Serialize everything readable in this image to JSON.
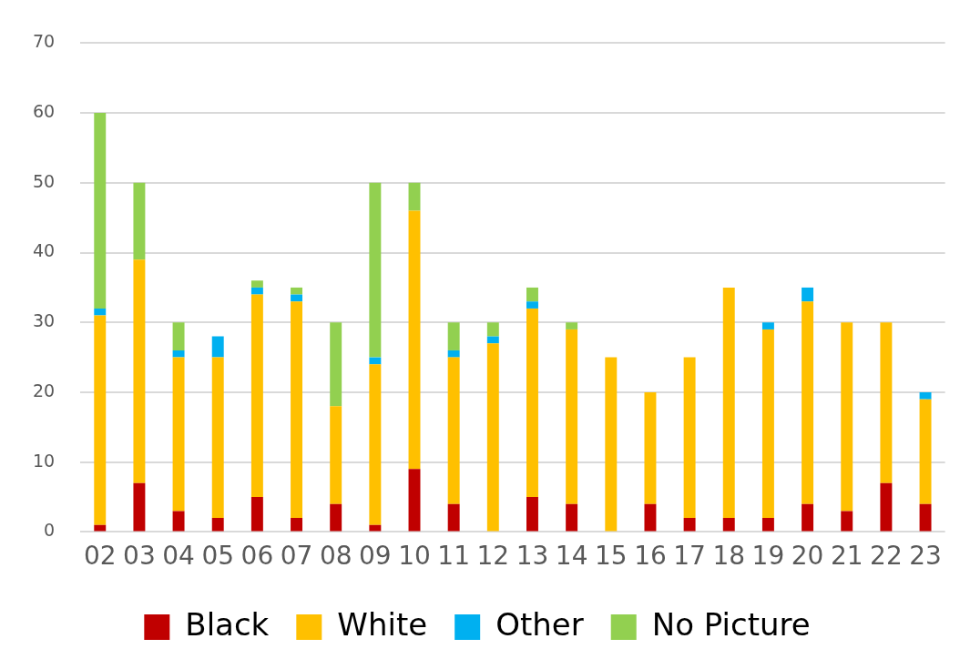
{
  "chart_data": {
    "type": "bar",
    "stacked": true,
    "categories": [
      "02",
      "03",
      "04",
      "05",
      "06",
      "07",
      "08",
      "09",
      "10",
      "11",
      "12",
      "13",
      "14",
      "15",
      "16",
      "17",
      "18",
      "19",
      "20",
      "21",
      "22",
      "23"
    ],
    "series": [
      {
        "name": "Black",
        "color": "#c00000",
        "values": [
          1,
          7,
          3,
          2,
          5,
          2,
          4,
          1,
          9,
          4,
          0,
          5,
          4,
          0,
          4,
          2,
          2,
          2,
          4,
          3,
          7,
          4
        ]
      },
      {
        "name": "White",
        "color": "#ffc000",
        "values": [
          30,
          32,
          22,
          23,
          29,
          31,
          14,
          23,
          37,
          21,
          27,
          27,
          25,
          25,
          16,
          23,
          33,
          27,
          29,
          27,
          23,
          15
        ]
      },
      {
        "name": "Other",
        "color": "#00b0f0",
        "values": [
          1,
          0,
          1,
          3,
          1,
          1,
          0,
          1,
          0,
          1,
          1,
          1,
          0,
          0,
          0,
          0,
          0,
          1,
          2,
          0,
          0,
          1
        ]
      },
      {
        "name": "No Picture",
        "color": "#92d050",
        "values": [
          28,
          11,
          4,
          0,
          1,
          1,
          12,
          25,
          4,
          4,
          2,
          2,
          1,
          0,
          0,
          0,
          0,
          0,
          0,
          0,
          0,
          0
        ]
      }
    ],
    "ylim": [
      0,
      70
    ],
    "yticks": [
      0,
      10,
      20,
      30,
      40,
      50,
      60,
      70
    ],
    "grid": "y",
    "legend": "bottom"
  }
}
